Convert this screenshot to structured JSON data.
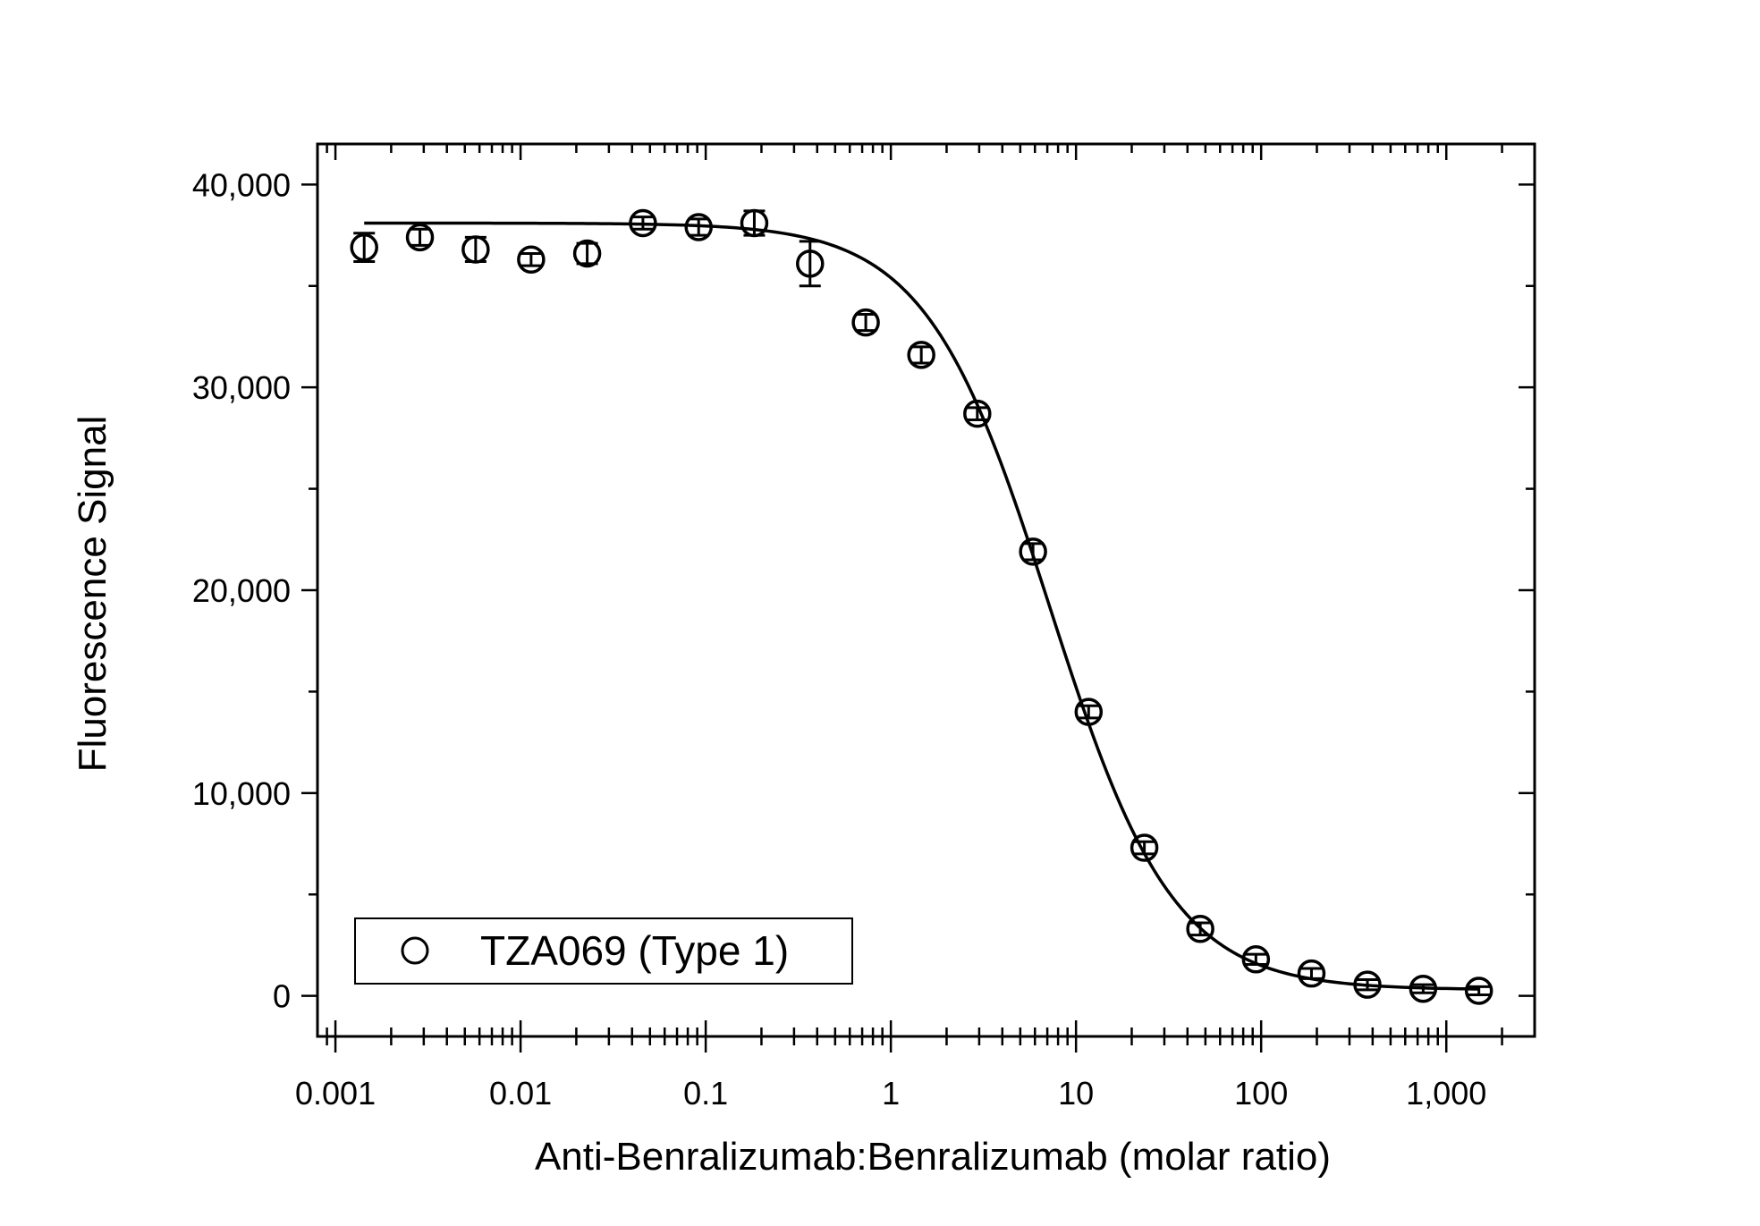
{
  "chart_data": {
    "type": "scatter",
    "xlabel": "Anti-Benralizumab:Benralizumab (molar ratio)",
    "ylabel": "Fluorescence Signal",
    "x_scale": "log",
    "xlim": [
      0.0008,
      3000
    ],
    "ylim": [
      -2000,
      42000
    ],
    "x_ticks": [
      0.001,
      0.01,
      0.1,
      1,
      10,
      100,
      1000
    ],
    "x_tick_labels": [
      "0.001",
      "0.01",
      "0.1",
      "1",
      "10",
      "100",
      "1,000"
    ],
    "y_ticks": [
      0,
      10000,
      20000,
      30000,
      40000
    ],
    "y_tick_labels": [
      "0",
      "10,000",
      "20,000",
      "30,000",
      "40,000"
    ],
    "grid": false,
    "legend_position": "bottom-left",
    "series": [
      {
        "name": "TZA069 (Type 1)",
        "marker": "open-circle",
        "color": "#000000",
        "x": [
          0.00143,
          0.00286,
          0.00572,
          0.0114,
          0.0229,
          0.0458,
          0.0916,
          0.183,
          0.366,
          0.732,
          1.46,
          2.93,
          5.86,
          11.7,
          23.4,
          46.9,
          93.7,
          187,
          375,
          750,
          1500
        ],
        "y": [
          36900,
          37400,
          36800,
          36300,
          36600,
          38100,
          37900,
          38100,
          36100,
          33200,
          31600,
          28700,
          21900,
          14000,
          7300,
          3300,
          1800,
          1100,
          550,
          350,
          250
        ],
        "error": [
          700,
          400,
          600,
          300,
          500,
          300,
          400,
          600,
          1100,
          400,
          400,
          300,
          400,
          300,
          300,
          300,
          250,
          250,
          250,
          200,
          200
        ]
      }
    ],
    "fit_curve": {
      "bottom": 300,
      "top": 38100,
      "ec50": 7.2,
      "hill": 1.3
    }
  }
}
